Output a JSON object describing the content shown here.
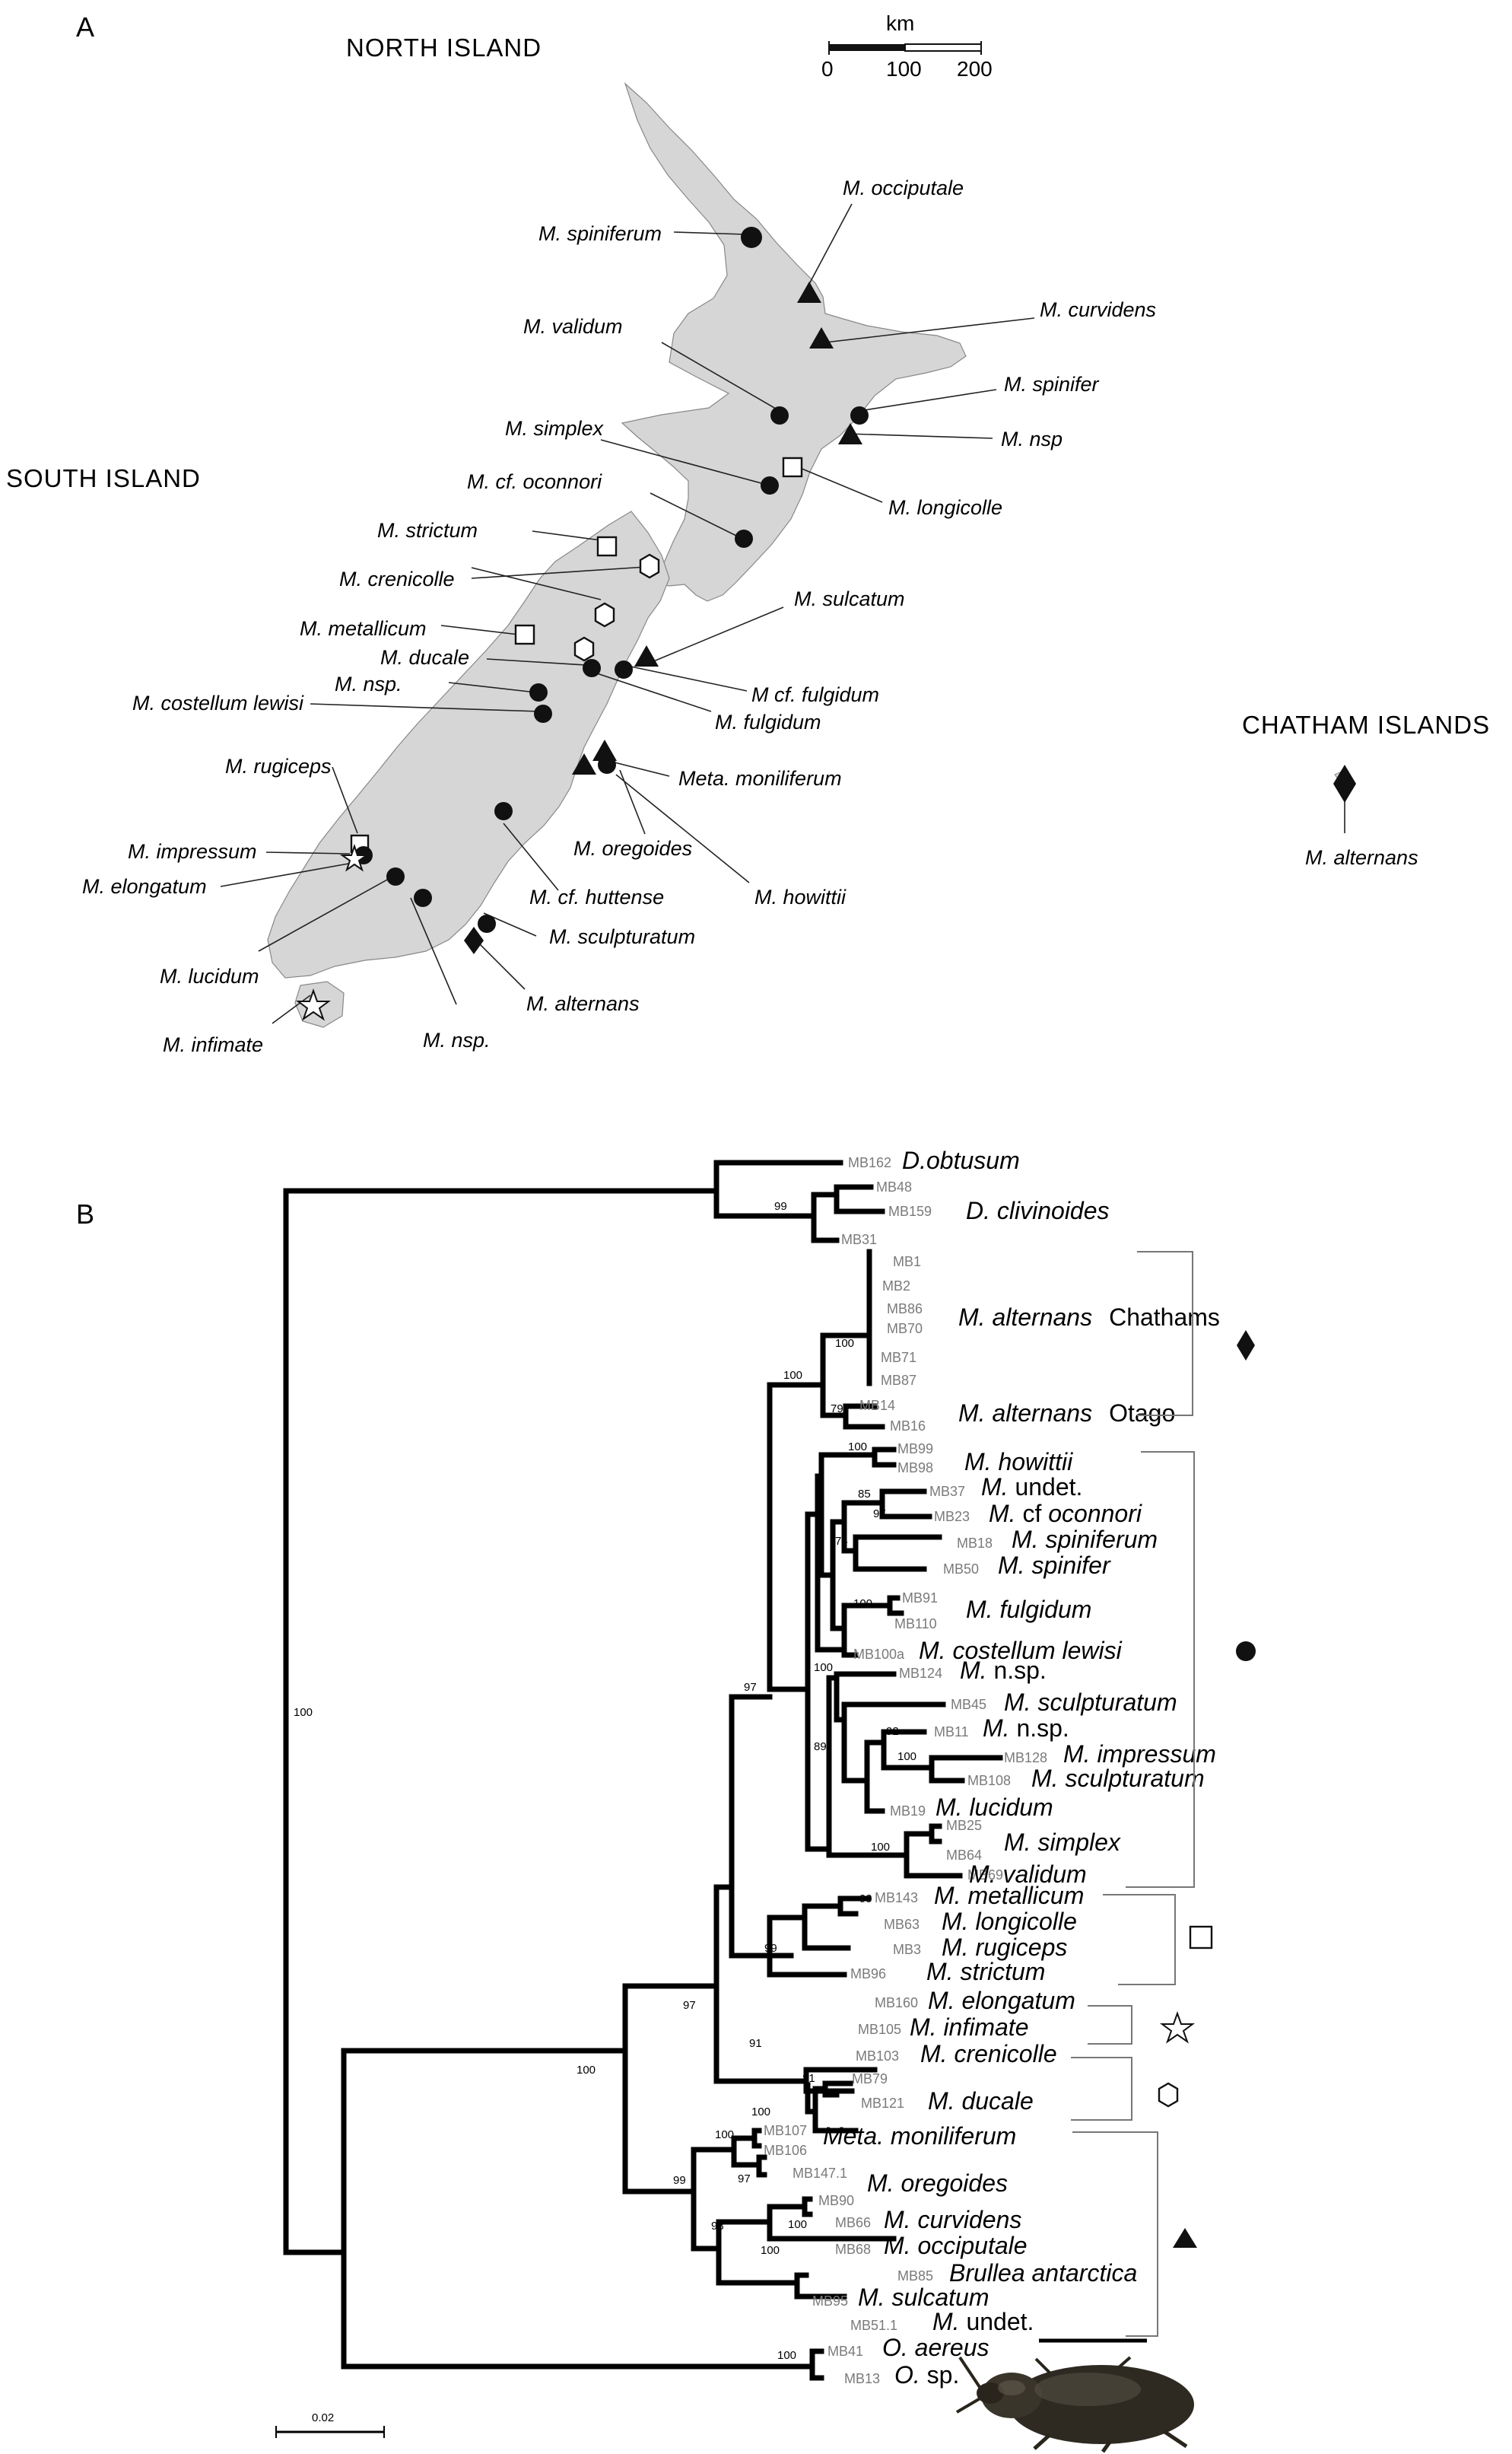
{
  "panel_a": {
    "label": "A",
    "regions": {
      "north": "NORTH ISLAND",
      "south": "SOUTH ISLAND",
      "chatham": "CHATHAM ISLANDS"
    },
    "scale": {
      "unit": "km",
      "ticks": [
        "0",
        "100",
        "200"
      ]
    },
    "map_labels": {
      "spiniferum": "M. spiniferum",
      "occiputale": "M. occiputale",
      "curvidens": "M. curvidens",
      "validum": "M. validum",
      "spinifer": "M. spinifer",
      "nsp_north": "M. nsp",
      "simplex": "M. simplex",
      "longicolle": "M. longicolle",
      "oconnori": "M. cf. oconnori",
      "strictum": "M. strictum",
      "crenicolle": "M. crenicolle",
      "metallicum": "M. metallicum",
      "sulcatum": "M. sulcatum",
      "ducale": "M. ducale",
      "nsp_south": "M. nsp.",
      "cf_fulgidum": "M cf. fulgidum",
      "lewisi": "M. costellum lewisi",
      "fulgidum": "M. fulgidum",
      "rugiceps": "M. rugiceps",
      "moniliferum": "Meta. moniliferum",
      "impressum": "M. impressum",
      "oregoides": "M. oregoides",
      "elongatum": "M. elongatum",
      "huttense": "M. cf. huttense",
      "howittii": "M. howittii",
      "sculpturatum": "M. sculpturatum",
      "lucidum": "M. lucidum",
      "alternans": "M. alternans",
      "infimate": "M. infimate",
      "nsp_bottom": "M. nsp.",
      "chatham_alternans": "M. alternans"
    }
  },
  "panel_b": {
    "label": "B",
    "scale_label": "0.02",
    "tips": {
      "MB162": "MB162",
      "MB48": "MB48",
      "MB159": "MB159",
      "MB31": "MB31",
      "MB1": "MB1",
      "MB2": "MB2",
      "MB86": "MB86",
      "MB70": "MB70",
      "MB71": "MB71",
      "MB87": "MB87",
      "MB14": "MB14",
      "MB16": "MB16",
      "MB99": "MB99",
      "MB98": "MB98",
      "MB37": "MB37",
      "MB23": "MB23",
      "MB18": "MB18",
      "MB50": "MB50",
      "MB91": "MB91",
      "MB110": "MB110",
      "MB100a": "MB100a",
      "MB124": "MB124",
      "MB45": "MB45",
      "MB11": "MB11",
      "MB128": "MB128",
      "MB108": "MB108",
      "MB19": "MB19",
      "MB25": "MB25",
      "MB64": "MB64",
      "MB69": "MB69",
      "MB143": "MB143",
      "MB63": "MB63",
      "MB3": "MB3",
      "MB96": "MB96",
      "MB160": "MB160",
      "MB105": "MB105",
      "MB103": "MB103",
      "MB79": "MB79",
      "MB121": "MB121",
      "MB107": "MB107",
      "MB106": "MB106",
      "MB147_1": "MB147.1",
      "MB90": "MB90",
      "MB66": "MB66",
      "MB68": "MB68",
      "MB85": "MB85",
      "MB95": "MB95",
      "MB51_1": "MB51.1",
      "MB41": "MB41",
      "MB13": "MB13"
    },
    "taxa": {
      "d_obtusum": "D.obtusum",
      "d_clivinoides": "D. clivinoides",
      "alt_ch": "M. alternans",
      "alt_ch_loc": "Chathams",
      "alt_ot": "M. alternans",
      "alt_ot_loc": "Otago",
      "howittii": "M. howittii",
      "undet1_g": "M.",
      "undet1_r": " undet.",
      "oconnori_g": "M.",
      "oconnori_cf": " cf ",
      "oconnori_s": "oconnori",
      "spiniferum": "M. spiniferum",
      "spinifer": "M. spinifer",
      "fulgidum": "M. fulgidum",
      "lewisi": "M. costellum lewisi",
      "nsp1_g": "M.",
      "nsp1_r": " n.sp.",
      "sculpturatum1": "M. sculpturatum",
      "nsp2_g": "M.",
      "nsp2_r": " n.sp.",
      "impressum": "M. impressum",
      "sculpturatum2": "M. sculpturatum",
      "lucidum": "M. lucidum",
      "simplex": "M. simplex",
      "validum": "M. validum",
      "metallicum": "M. metallicum",
      "longicolle": "M. longicolle",
      "rugiceps": "M. rugiceps",
      "strictum": "M. strictum",
      "elongatum": "M. elongatum",
      "infimate": "M. infimate",
      "crenicolle": "M. crenicolle",
      "ducale": "M. ducale",
      "moniliferum": "Meta. moniliferum",
      "oregoides": "M. oregoides",
      "curvidens": "M. curvidens",
      "occiputale": "M. occiputale",
      "brullea": "Brullea antarctica",
      "sulcatum": "M. sulcatum",
      "undet2_g": "M.",
      "undet2_r": " undet.",
      "aereus": "O. aereus",
      "osp_g": "O.",
      "osp_r": " sp."
    },
    "support": {
      "s100_root": "100",
      "s99_dc": "99",
      "s100_alt": "100",
      "s100_altgrp": "100",
      "s79": "79",
      "s100_how": "100",
      "s97_main": "97",
      "s85": "85",
      "s97_oc": "97",
      "s74": "74",
      "s100_fulg": "100",
      "s100_nsp": "100",
      "s92": "92",
      "s100_imp": "100",
      "s89": "89",
      "s100_simp": "100",
      "s99_met": "99",
      "s99_sq": "99",
      "s91": "91",
      "s81": "81",
      "s100_hex": "100",
      "s97_ingroup": "97",
      "s100_mega": "100",
      "s100_meta": "100",
      "s97_ore": "97",
      "s100_curv": "100",
      "s100_bru": "100",
      "s98": "98",
      "s99_tri": "99",
      "s100_oreg": "100"
    }
  }
}
